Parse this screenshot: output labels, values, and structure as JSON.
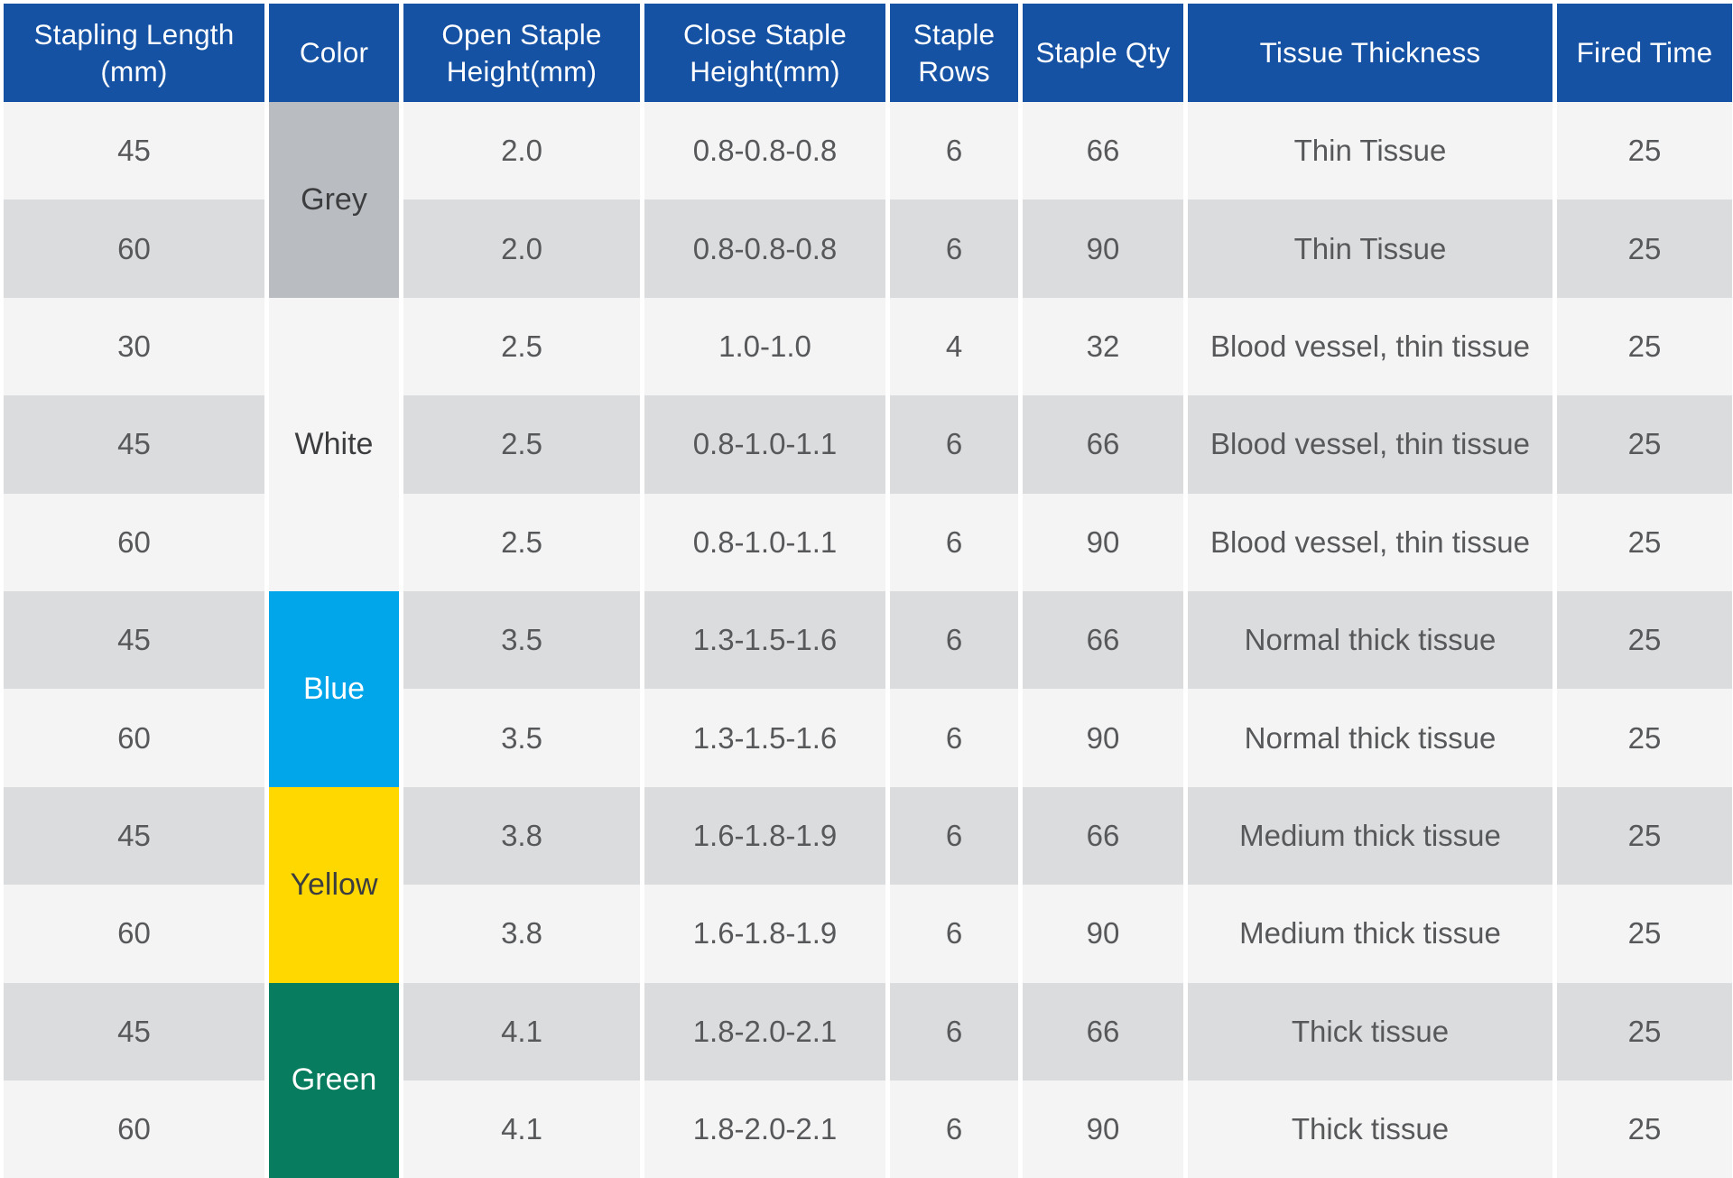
{
  "theme": {
    "header_bg": "#1552a4",
    "header_text": "#ffffff",
    "row_light": "#f4f4f5",
    "row_dark": "#dbdcde",
    "cell_text": "#57585a",
    "separator": "#ffffff"
  },
  "table": {
    "columns": [
      {
        "label": "Stapling Length\n(mm)"
      },
      {
        "label": "Color"
      },
      {
        "label": "Open Staple\nHeight(mm)"
      },
      {
        "label": "Close Staple\nHeight(mm)"
      },
      {
        "label": "Staple\nRows"
      },
      {
        "label": "Staple Qty"
      },
      {
        "label": "Tissue Thickness"
      },
      {
        "label": "Fired Time"
      }
    ],
    "color_groups": [
      {
        "name": "Grey",
        "row_span": 2,
        "bg": "#b9bcc0",
        "text_color": "#3c3d3f"
      },
      {
        "name": "White",
        "row_span": 3,
        "bg": "#f5f5f6",
        "text_color": "#3c3d3f"
      },
      {
        "name": "Blue",
        "row_span": 2,
        "bg": "#00a6e9",
        "text_color": "#ffffff"
      },
      {
        "name": "Yellow",
        "row_span": 2,
        "bg": "#ffd800",
        "text_color": "#3c3d3f"
      },
      {
        "name": "Green",
        "row_span": 2,
        "bg": "#077c5e",
        "text_color": "#ffffff"
      }
    ],
    "rows": [
      {
        "stapling_length": "45",
        "color": "Grey",
        "open_height": "2.0",
        "close_height": "0.8-0.8-0.8",
        "staple_rows": "6",
        "staple_qty": "66",
        "tissue_thickness": "Thin Tissue",
        "fired_time": "25"
      },
      {
        "stapling_length": "60",
        "color": "Grey",
        "open_height": "2.0",
        "close_height": "0.8-0.8-0.8",
        "staple_rows": "6",
        "staple_qty": "90",
        "tissue_thickness": "Thin Tissue",
        "fired_time": "25"
      },
      {
        "stapling_length": "30",
        "color": "White",
        "open_height": "2.5",
        "close_height": "1.0-1.0",
        "staple_rows": "4",
        "staple_qty": "32",
        "tissue_thickness": "Blood vessel, thin tissue",
        "fired_time": "25"
      },
      {
        "stapling_length": "45",
        "color": "White",
        "open_height": "2.5",
        "close_height": "0.8-1.0-1.1",
        "staple_rows": "6",
        "staple_qty": "66",
        "tissue_thickness": "Blood vessel, thin tissue",
        "fired_time": "25"
      },
      {
        "stapling_length": "60",
        "color": "White",
        "open_height": "2.5",
        "close_height": "0.8-1.0-1.1",
        "staple_rows": "6",
        "staple_qty": "90",
        "tissue_thickness": "Blood vessel, thin tissue",
        "fired_time": "25"
      },
      {
        "stapling_length": "45",
        "color": "Blue",
        "open_height": "3.5",
        "close_height": "1.3-1.5-1.6",
        "staple_rows": "6",
        "staple_qty": "66",
        "tissue_thickness": "Normal thick tissue",
        "fired_time": "25"
      },
      {
        "stapling_length": "60",
        "color": "Blue",
        "open_height": "3.5",
        "close_height": "1.3-1.5-1.6",
        "staple_rows": "6",
        "staple_qty": "90",
        "tissue_thickness": "Normal thick tissue",
        "fired_time": "25"
      },
      {
        "stapling_length": "45",
        "color": "Yellow",
        "open_height": "3.8",
        "close_height": "1.6-1.8-1.9",
        "staple_rows": "6",
        "staple_qty": "66",
        "tissue_thickness": "Medium thick tissue",
        "fired_time": "25"
      },
      {
        "stapling_length": "60",
        "color": "Yellow",
        "open_height": "3.8",
        "close_height": "1.6-1.8-1.9",
        "staple_rows": "6",
        "staple_qty": "90",
        "tissue_thickness": "Medium thick tissue",
        "fired_time": "25"
      },
      {
        "stapling_length": "45",
        "color": "Green",
        "open_height": "4.1",
        "close_height": "1.8-2.0-2.1",
        "staple_rows": "6",
        "staple_qty": "66",
        "tissue_thickness": "Thick tissue",
        "fired_time": "25"
      },
      {
        "stapling_length": "60",
        "color": "Green",
        "open_height": "4.1",
        "close_height": "1.8-2.0-2.1",
        "staple_rows": "6",
        "staple_qty": "90",
        "tissue_thickness": "Thick tissue",
        "fired_time": "25"
      }
    ]
  }
}
